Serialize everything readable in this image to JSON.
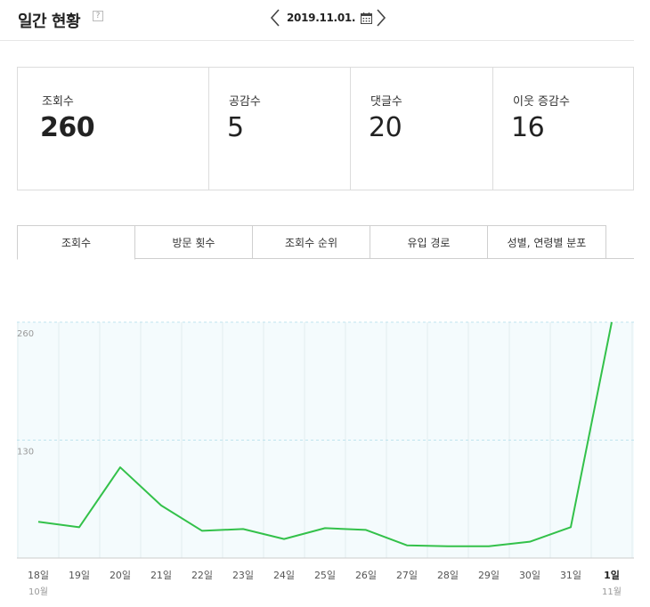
{
  "header": {
    "title": "일간 현황",
    "help_icon": "?",
    "date": "2019.11.01.",
    "prev_icon": "chevron-left-icon",
    "next_icon": "chevron-right-icon",
    "calendar_icon": "calendar-icon"
  },
  "stats": [
    {
      "label": "조회수",
      "value": "260"
    },
    {
      "label": "공감수",
      "value": "5"
    },
    {
      "label": "댓글수",
      "value": "20"
    },
    {
      "label": "이웃 증감수",
      "value": "16"
    }
  ],
  "tabs": [
    {
      "label": "조회수",
      "active": true
    },
    {
      "label": "방문 횟수",
      "active": false
    },
    {
      "label": "조회수 순위",
      "active": false
    },
    {
      "label": "유입 경로",
      "active": false
    },
    {
      "label": "성별, 연령별 분포",
      "active": false
    }
  ],
  "colors": {
    "line": "#33c14a",
    "plot_bg": "#f4fbfd",
    "grid": "#e2ecf0",
    "ref_line": "#bfe3ee"
  },
  "chart_data": {
    "type": "line",
    "categories": [
      "18일",
      "19일",
      "20일",
      "21일",
      "22일",
      "23일",
      "24일",
      "25일",
      "26일",
      "27일",
      "28일",
      "29일",
      "30일",
      "31일",
      "1일"
    ],
    "month_labels": [
      {
        "index": 0,
        "label": "10월"
      },
      {
        "index": 14,
        "label": "11월"
      }
    ],
    "series": [
      {
        "values": [
          40,
          34,
          100,
          58,
          30,
          32,
          21,
          33,
          31,
          14,
          13,
          13,
          18,
          34,
          260
        ]
      }
    ],
    "yticks": [
      130,
      260
    ],
    "ylim": [
      0,
      260
    ],
    "highlight_index": 14
  }
}
